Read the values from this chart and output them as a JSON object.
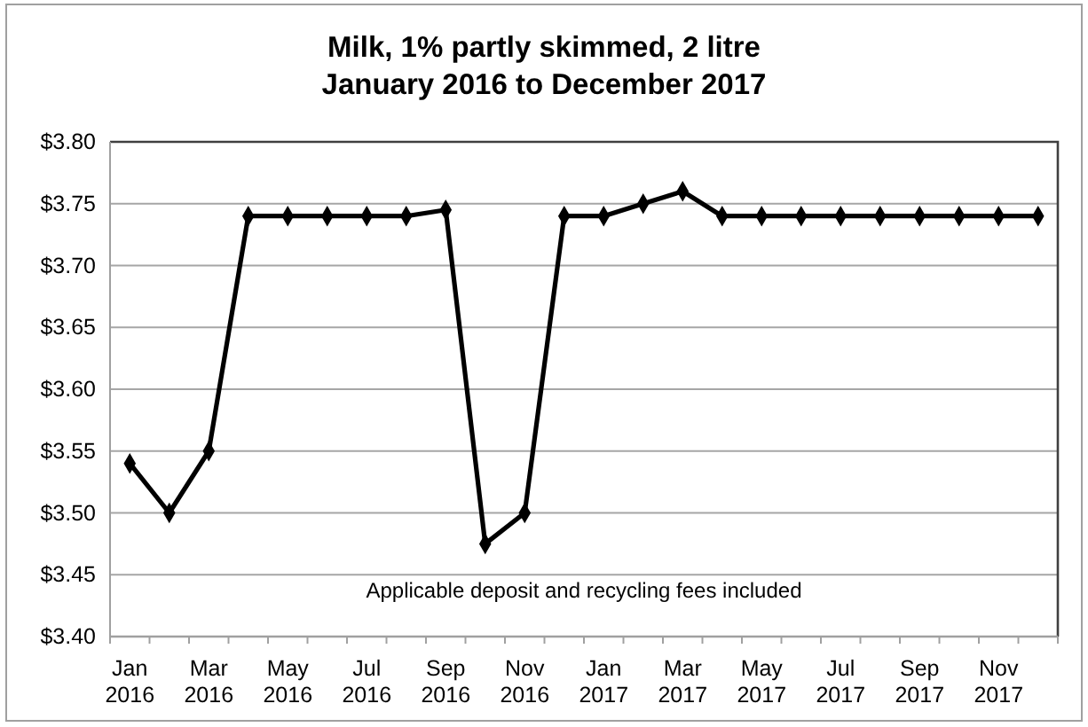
{
  "chart_data": {
    "type": "line",
    "title": "Milk, 1% partly skimmed, 2 litre",
    "subtitle": "January 2016 to December 2017",
    "categories": [
      "Jan 2016",
      null,
      "Mar 2016",
      null,
      "May 2016",
      null,
      "Jul 2016",
      null,
      "Sep 2016",
      null,
      "Nov 2016",
      null,
      "Jan 2017",
      null,
      "Mar 2017",
      null,
      "May 2017",
      null,
      "Jul 2017",
      null,
      "Sep 2017",
      null,
      "Nov 2017",
      null
    ],
    "values": [
      3.54,
      3.5,
      3.55,
      3.74,
      3.74,
      3.74,
      3.74,
      3.74,
      3.745,
      3.475,
      3.5,
      3.74,
      3.74,
      3.75,
      3.76,
      3.74,
      3.74,
      3.74,
      3.74,
      3.74,
      3.74,
      3.74,
      3.74,
      3.74
    ],
    "color": "#000000",
    "ylim": [
      3.4,
      3.8
    ],
    "yticks": [
      {
        "value": 3.4,
        "label": "$3.40"
      },
      {
        "value": 3.45,
        "label": "$3.45"
      },
      {
        "value": 3.5,
        "label": "$3.50"
      },
      {
        "value": 3.55,
        "label": "$3.55"
      },
      {
        "value": 3.6,
        "label": "$3.60"
      },
      {
        "value": 3.65,
        "label": "$3.65"
      },
      {
        "value": 3.7,
        "label": "$3.70"
      },
      {
        "value": 3.75,
        "label": "$3.75"
      },
      {
        "value": 3.8,
        "label": "$3.80"
      }
    ],
    "grid": "y",
    "marker": "diamond",
    "line_style": "solid",
    "annotations": [
      "Applicable deposit and recycling fees included"
    ]
  }
}
